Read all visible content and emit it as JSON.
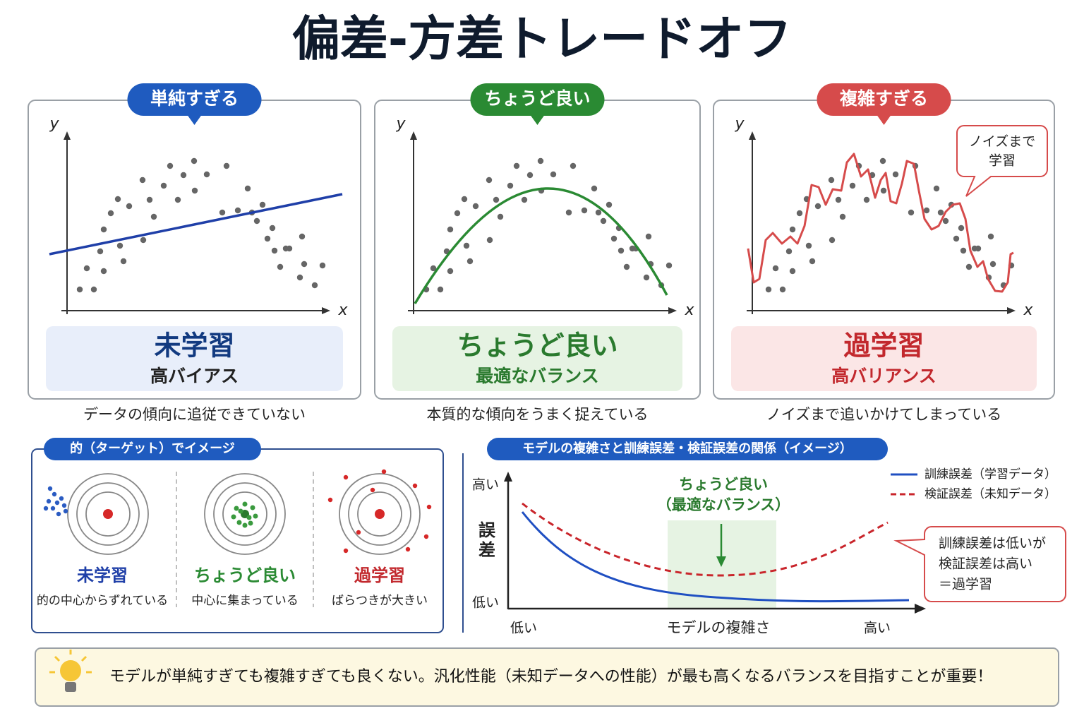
{
  "title": "偏差-方差トレードオフ",
  "panels": [
    {
      "tag": "単純すぎる",
      "y_axis": "y",
      "x_axis": "x",
      "label": "未学習",
      "sublabel": "高バイアス",
      "caption": "データの傾向に追従できていない"
    },
    {
      "tag": "ちょうど良い",
      "y_axis": "y",
      "x_axis": "x",
      "label": "ちょうど良い",
      "sublabel": "最適なバランス",
      "caption": "本質的な傾向をうまく捉えている"
    },
    {
      "tag": "複雑すぎる",
      "y_axis": "y",
      "x_axis": "x",
      "label": "過学習",
      "sublabel": "高バリアンス",
      "caption": "ノイズまで追いかけてしまっている",
      "callout": [
        "ノイズまで",
        "学習"
      ]
    }
  ],
  "target": {
    "title": "的（ターゲット）でイメージ",
    "items": [
      {
        "label": "未学習",
        "caption": "的の中心からずれている"
      },
      {
        "label": "ちょうど良い",
        "caption": "中心に集まっている"
      },
      {
        "label": "過学習",
        "caption": "ばらつきが大きい"
      }
    ]
  },
  "error_chart": {
    "title": "モデルの複雑さと訓練誤差・検証誤差の関係（イメージ）",
    "y_label": [
      "誤",
      "差"
    ],
    "y_high": "高い",
    "y_low": "低い",
    "x_label": "モデルの複雑さ",
    "x_low": "低い",
    "x_high": "高い",
    "legend": [
      "訓練誤差（学習データ）",
      "検証誤差（未知データ）"
    ],
    "optimal": [
      "ちょうど良い",
      "（最適なバランス）"
    ],
    "callout": [
      "訓練誤差は低いが",
      "検証誤差は高い",
      "＝過学習"
    ]
  },
  "footer": "モデルが単純すぎても複雑すぎても良くない。汎化性能（未知データへの性能）が最も高くなるバランスを目指すことが重要！"
}
